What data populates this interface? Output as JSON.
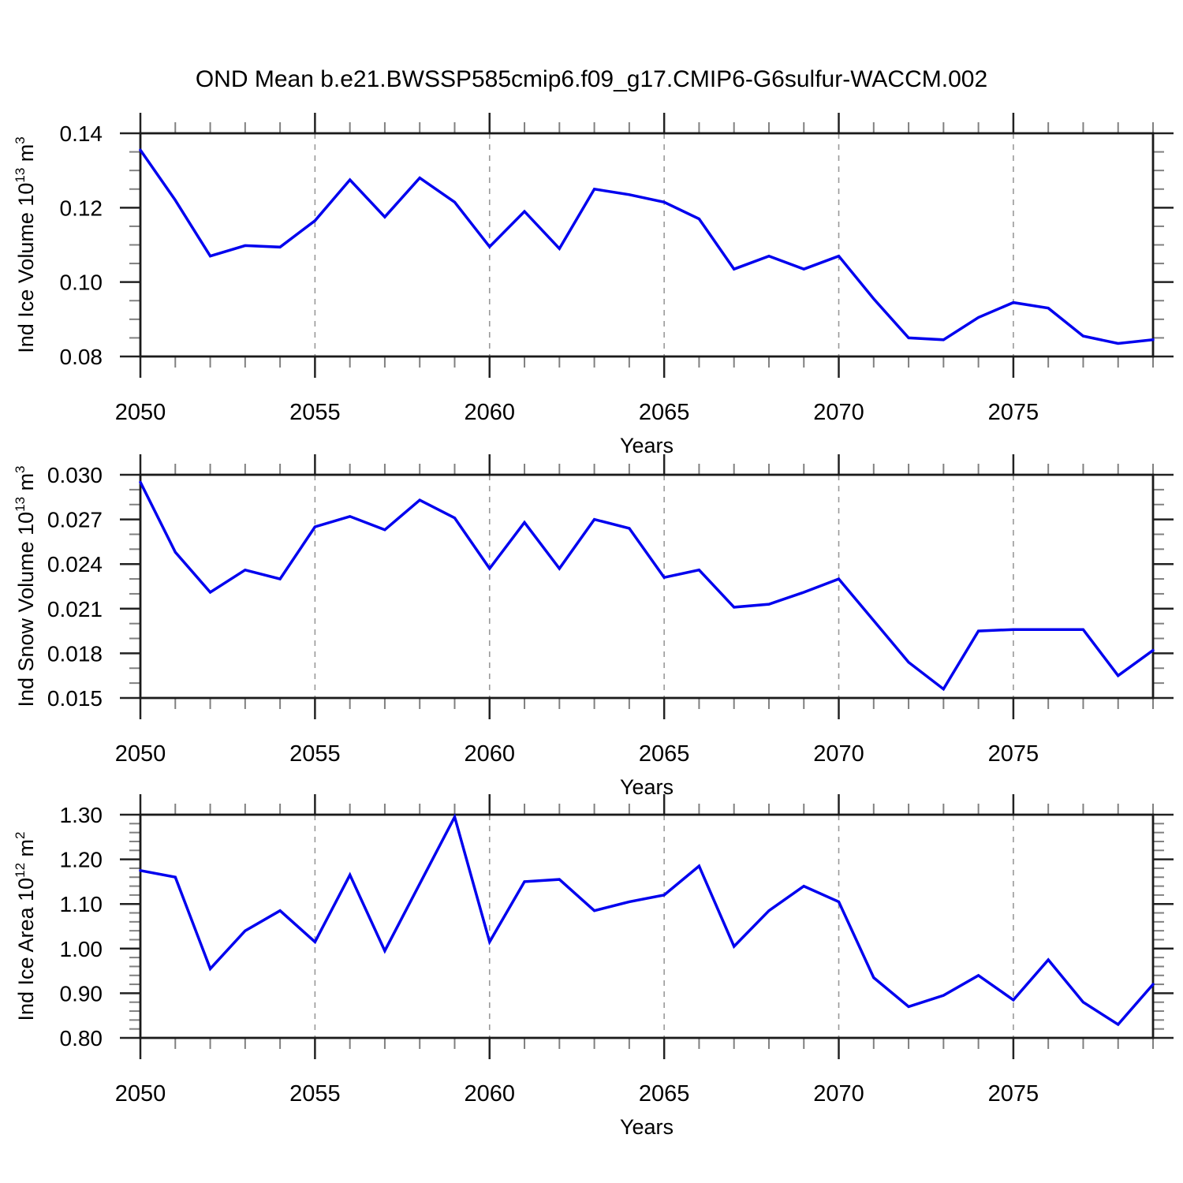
{
  "title": "OND Mean b.e21.BWSSP585cmip6.f09_g17.CMIP6-G6sulfur-WACCM.002",
  "colors": {
    "line": "#0000ee",
    "frame": "#1a1a1a",
    "tick_major": "#222222",
    "tick_minor": "#808080",
    "grid_dashed": "#999999",
    "text": "#000000",
    "background": "#ffffff"
  },
  "chart_data": [
    {
      "type": "line",
      "name": "ind-ice-volume",
      "ylabel_text": "Ind Ice Volume 10^13 m^3",
      "ylabel_segments": [
        {
          "t": "Ind Ice Volume 10"
        },
        {
          "t": "13",
          "sup": true
        },
        {
          "t": " m"
        },
        {
          "t": "3",
          "sup": true
        }
      ],
      "xlabel": "Years",
      "x": [
        2050,
        2051,
        2052,
        2053,
        2054,
        2055,
        2056,
        2057,
        2058,
        2059,
        2060,
        2061,
        2062,
        2063,
        2064,
        2065,
        2066,
        2067,
        2068,
        2069,
        2070,
        2071,
        2072,
        2073,
        2074,
        2075,
        2076,
        2077,
        2078,
        2079
      ],
      "values": [
        0.1355,
        0.122,
        0.107,
        0.1098,
        0.1094,
        0.1165,
        0.1275,
        0.1175,
        0.128,
        0.1215,
        0.1095,
        0.119,
        0.109,
        0.125,
        0.1235,
        0.1215,
        0.117,
        0.1035,
        0.107,
        0.1035,
        0.107,
        0.0955,
        0.085,
        0.0845,
        0.0905,
        0.0945,
        0.093,
        0.0855,
        0.0835,
        0.0845
      ],
      "ylim": [
        0.08,
        0.14
      ],
      "y_major_step": 0.02,
      "y_minor_step": 0.005,
      "y_decimals": 2,
      "xlim": [
        2050,
        2079
      ],
      "x_major_ticks": [
        2050,
        2055,
        2060,
        2065,
        2070,
        2075
      ],
      "x_minor_step": 1,
      "grid_years": [
        2055,
        2060,
        2065,
        2070,
        2075
      ],
      "legend": "none",
      "grid": "dashed vertical lines at labeled years"
    },
    {
      "type": "line",
      "name": "ind-snow-volume",
      "ylabel_text": "Ind Snow Volume 10^13 m^3",
      "ylabel_segments": [
        {
          "t": "Ind Snow Volume 10"
        },
        {
          "t": "13",
          "sup": true
        },
        {
          "t": " m"
        },
        {
          "t": "3",
          "sup": true
        }
      ],
      "xlabel": "Years",
      "x": [
        2050,
        2051,
        2052,
        2053,
        2054,
        2055,
        2056,
        2057,
        2058,
        2059,
        2060,
        2061,
        2062,
        2063,
        2064,
        2065,
        2066,
        2067,
        2068,
        2069,
        2070,
        2071,
        2072,
        2073,
        2074,
        2075,
        2076,
        2077,
        2078,
        2079
      ],
      "values": [
        0.0295,
        0.0248,
        0.0221,
        0.0236,
        0.023,
        0.0265,
        0.0272,
        0.0263,
        0.0283,
        0.0271,
        0.0237,
        0.0268,
        0.0237,
        0.027,
        0.0264,
        0.0231,
        0.0236,
        0.0211,
        0.0213,
        0.0221,
        0.023,
        0.0202,
        0.0174,
        0.0156,
        0.0195,
        0.0196,
        0.0196,
        0.0196,
        0.0165,
        0.0182
      ],
      "ylim": [
        0.015,
        0.03
      ],
      "y_major_step": 0.003,
      "y_minor_step": 0.001,
      "y_decimals": 3,
      "xlim": [
        2050,
        2079
      ],
      "x_major_ticks": [
        2050,
        2055,
        2060,
        2065,
        2070,
        2075
      ],
      "x_minor_step": 1,
      "grid_years": [
        2055,
        2060,
        2065,
        2070,
        2075
      ],
      "legend": "none",
      "grid": "dashed vertical lines at labeled years"
    },
    {
      "type": "line",
      "name": "ind-ice-area",
      "ylabel_text": "Ind Ice Area 10^12 m^2",
      "ylabel_segments": [
        {
          "t": "Ind Ice Area 10"
        },
        {
          "t": "12",
          "sup": true
        },
        {
          "t": " m"
        },
        {
          "t": "2",
          "sup": true
        }
      ],
      "xlabel": "Years",
      "x": [
        2050,
        2051,
        2052,
        2053,
        2054,
        2055,
        2056,
        2057,
        2058,
        2059,
        2060,
        2061,
        2062,
        2063,
        2064,
        2065,
        2066,
        2067,
        2068,
        2069,
        2070,
        2071,
        2072,
        2073,
        2074,
        2075,
        2076,
        2077,
        2078,
        2079
      ],
      "values": [
        1.175,
        1.16,
        0.955,
        1.04,
        1.085,
        1.015,
        1.165,
        0.995,
        1.145,
        1.295,
        1.015,
        1.15,
        1.155,
        1.085,
        1.105,
        1.12,
        1.185,
        1.005,
        1.085,
        1.14,
        1.105,
        0.935,
        0.87,
        0.895,
        0.94,
        0.885,
        0.975,
        0.88,
        0.83,
        0.92
      ],
      "ylim": [
        0.8,
        1.3
      ],
      "y_major_step": 0.1,
      "y_minor_step": 0.02,
      "y_decimals": 2,
      "xlim": [
        2050,
        2079
      ],
      "x_major_ticks": [
        2050,
        2055,
        2060,
        2065,
        2070,
        2075
      ],
      "x_minor_step": 1,
      "grid_years": [
        2055,
        2060,
        2065,
        2070,
        2075
      ],
      "legend": "none",
      "grid": "dashed vertical lines at labeled years"
    }
  ]
}
